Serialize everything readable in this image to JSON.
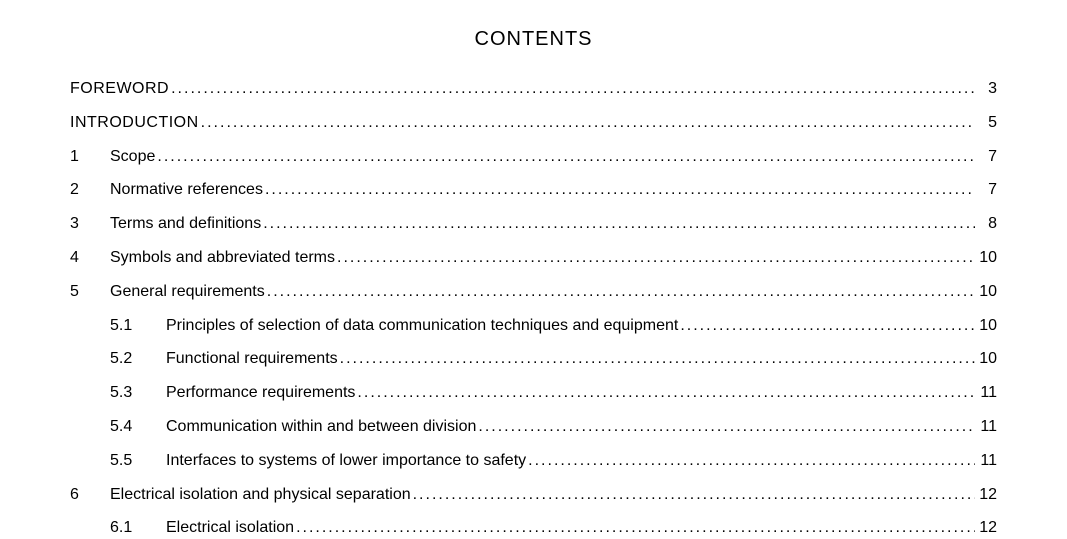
{
  "title": "CONTENTS",
  "entries": [
    {
      "level": 0,
      "num": "",
      "label": "FOREWORD",
      "page": "3",
      "upper": true
    },
    {
      "level": 0,
      "num": "",
      "label": "INTRODUCTION",
      "page": "5",
      "upper": true
    },
    {
      "level": 1,
      "num": "1",
      "label": "Scope",
      "page": "7"
    },
    {
      "level": 1,
      "num": "2",
      "label": "Normative references",
      "page": "7"
    },
    {
      "level": 1,
      "num": "3",
      "label": "Terms and definitions",
      "page": "8"
    },
    {
      "level": 1,
      "num": "4",
      "label": "Symbols and abbreviated terms",
      "page": "10"
    },
    {
      "level": 1,
      "num": "5",
      "label": "General requirements",
      "page": "10"
    },
    {
      "level": 2,
      "num": "5.1",
      "label": "Principles of selection of data communication techniques and equipment",
      "page": "10"
    },
    {
      "level": 2,
      "num": "5.2",
      "label": "Functional requirements",
      "page": "10"
    },
    {
      "level": 2,
      "num": "5.3",
      "label": "Performance requirements",
      "page": "11"
    },
    {
      "level": 2,
      "num": "5.4",
      "label": "Communication within and between division",
      "page": "11"
    },
    {
      "level": 2,
      "num": "5.5",
      "label": "Interfaces to systems of lower importance to safety",
      "page": "11"
    },
    {
      "level": 1,
      "num": "6",
      "label": "Electrical isolation and physical separation",
      "page": "12"
    },
    {
      "level": 2,
      "num": "6.1",
      "label": "Electrical isolation",
      "page": "12"
    }
  ]
}
